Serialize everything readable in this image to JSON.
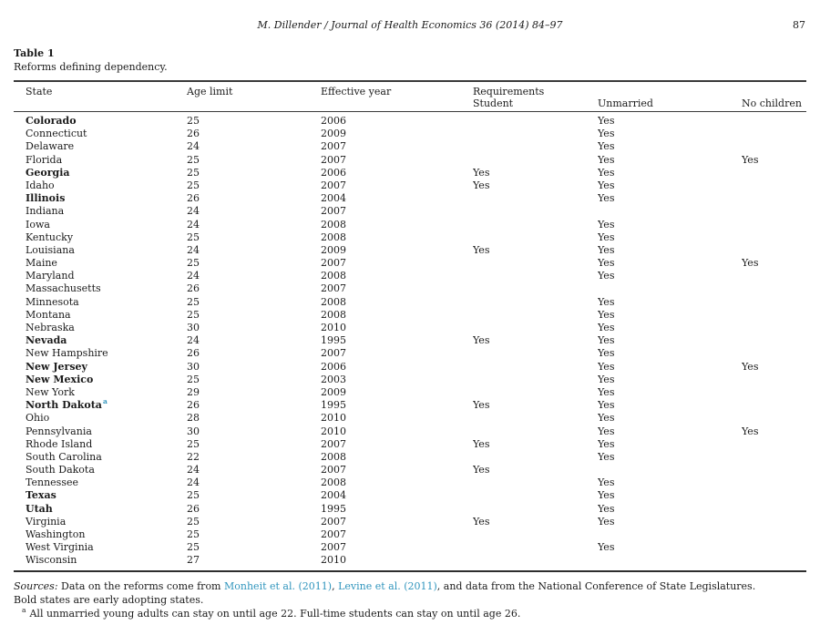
{
  "page": {
    "running_head": "M. Dillender / Journal of Health Economics 36 (2014) 84–97",
    "page_number": "87"
  },
  "table": {
    "label": "Table 1",
    "caption": "Reforms defining dependency.",
    "columns": {
      "state": "State",
      "age_limit": "Age limit",
      "effective_year": "Effective year",
      "requirements": "Requirements",
      "student": "Student",
      "unmarried": "Unmarried",
      "no_children": "No children"
    },
    "rows": [
      {
        "state": "Colorado",
        "bold": true,
        "age_limit": "25",
        "effective_year": "2006",
        "student": "",
        "unmarried": "Yes",
        "no_children": ""
      },
      {
        "state": "Connecticut",
        "bold": false,
        "age_limit": "26",
        "effective_year": "2009",
        "student": "",
        "unmarried": "Yes",
        "no_children": ""
      },
      {
        "state": "Delaware",
        "bold": false,
        "age_limit": "24",
        "effective_year": "2007",
        "student": "",
        "unmarried": "Yes",
        "no_children": ""
      },
      {
        "state": "Florida",
        "bold": false,
        "age_limit": "25",
        "effective_year": "2007",
        "student": "",
        "unmarried": "Yes",
        "no_children": "Yes"
      },
      {
        "state": "Georgia",
        "bold": true,
        "age_limit": "25",
        "effective_year": "2006",
        "student": "Yes",
        "unmarried": "Yes",
        "no_children": ""
      },
      {
        "state": "Idaho",
        "bold": false,
        "age_limit": "25",
        "effective_year": "2007",
        "student": "Yes",
        "unmarried": "Yes",
        "no_children": ""
      },
      {
        "state": "Illinois",
        "bold": true,
        "age_limit": "26",
        "effective_year": "2004",
        "student": "",
        "unmarried": "Yes",
        "no_children": ""
      },
      {
        "state": "Indiana",
        "bold": false,
        "age_limit": "24",
        "effective_year": "2007",
        "student": "",
        "unmarried": "",
        "no_children": ""
      },
      {
        "state": "Iowa",
        "bold": false,
        "age_limit": "24",
        "effective_year": "2008",
        "student": "",
        "unmarried": "Yes",
        "no_children": ""
      },
      {
        "state": "Kentucky",
        "bold": false,
        "age_limit": "25",
        "effective_year": "2008",
        "student": "",
        "unmarried": "Yes",
        "no_children": ""
      },
      {
        "state": "Louisiana",
        "bold": false,
        "age_limit": "24",
        "effective_year": "2009",
        "student": "Yes",
        "unmarried": "Yes",
        "no_children": ""
      },
      {
        "state": "Maine",
        "bold": false,
        "age_limit": "25",
        "effective_year": "2007",
        "student": "",
        "unmarried": "Yes",
        "no_children": "Yes"
      },
      {
        "state": "Maryland",
        "bold": false,
        "age_limit": "24",
        "effective_year": "2008",
        "student": "",
        "unmarried": "Yes",
        "no_children": ""
      },
      {
        "state": "Massachusetts",
        "bold": false,
        "age_limit": "26",
        "effective_year": "2007",
        "student": "",
        "unmarried": "",
        "no_children": ""
      },
      {
        "state": "Minnesota",
        "bold": false,
        "age_limit": "25",
        "effective_year": "2008",
        "student": "",
        "unmarried": "Yes",
        "no_children": ""
      },
      {
        "state": "Montana",
        "bold": false,
        "age_limit": "25",
        "effective_year": "2008",
        "student": "",
        "unmarried": "Yes",
        "no_children": ""
      },
      {
        "state": "Nebraska",
        "bold": false,
        "age_limit": "30",
        "effective_year": "2010",
        "student": "",
        "unmarried": "Yes",
        "no_children": ""
      },
      {
        "state": "Nevada",
        "bold": true,
        "age_limit": "24",
        "effective_year": "1995",
        "student": "Yes",
        "unmarried": "Yes",
        "no_children": ""
      },
      {
        "state": "New Hampshire",
        "bold": false,
        "age_limit": "26",
        "effective_year": "2007",
        "student": "",
        "unmarried": "Yes",
        "no_children": ""
      },
      {
        "state": "New Jersey",
        "bold": true,
        "age_limit": "30",
        "effective_year": "2006",
        "student": "",
        "unmarried": "Yes",
        "no_children": "Yes"
      },
      {
        "state": "New Mexico",
        "bold": true,
        "age_limit": "25",
        "effective_year": "2003",
        "student": "",
        "unmarried": "Yes",
        "no_children": ""
      },
      {
        "state": "New York",
        "bold": false,
        "age_limit": "29",
        "effective_year": "2009",
        "student": "",
        "unmarried": "Yes",
        "no_children": ""
      },
      {
        "state": "North Dakota",
        "bold": true,
        "marker": "a",
        "age_limit": "26",
        "effective_year": "1995",
        "student": "Yes",
        "unmarried": "Yes",
        "no_children": ""
      },
      {
        "state": "Ohio",
        "bold": false,
        "age_limit": "28",
        "effective_year": "2010",
        "student": "",
        "unmarried": "Yes",
        "no_children": ""
      },
      {
        "state": "Pennsylvania",
        "bold": false,
        "age_limit": "30",
        "effective_year": "2010",
        "student": "",
        "unmarried": "Yes",
        "no_children": "Yes"
      },
      {
        "state": "Rhode Island",
        "bold": false,
        "age_limit": "25",
        "effective_year": "2007",
        "student": "Yes",
        "unmarried": "Yes",
        "no_children": ""
      },
      {
        "state": "South Carolina",
        "bold": false,
        "age_limit": "22",
        "effective_year": "2008",
        "student": "",
        "unmarried": "Yes",
        "no_children": ""
      },
      {
        "state": "South Dakota",
        "bold": false,
        "age_limit": "24",
        "effective_year": "2007",
        "student": "Yes",
        "unmarried": "",
        "no_children": ""
      },
      {
        "state": "Tennessee",
        "bold": false,
        "age_limit": "24",
        "effective_year": "2008",
        "student": "",
        "unmarried": "Yes",
        "no_children": ""
      },
      {
        "state": "Texas",
        "bold": true,
        "age_limit": "25",
        "effective_year": "2004",
        "student": "",
        "unmarried": "Yes",
        "no_children": ""
      },
      {
        "state": "Utah",
        "bold": true,
        "age_limit": "26",
        "effective_year": "1995",
        "student": "",
        "unmarried": "Yes",
        "no_children": ""
      },
      {
        "state": "Virginia",
        "bold": false,
        "age_limit": "25",
        "effective_year": "2007",
        "student": "Yes",
        "unmarried": "Yes",
        "no_children": ""
      },
      {
        "state": "Washington",
        "bold": false,
        "age_limit": "25",
        "effective_year": "2007",
        "student": "",
        "unmarried": "",
        "no_children": ""
      },
      {
        "state": "West Virginia",
        "bold": false,
        "age_limit": "25",
        "effective_year": "2007",
        "student": "",
        "unmarried": "Yes",
        "no_children": ""
      },
      {
        "state": "Wisconsin",
        "bold": false,
        "age_limit": "27",
        "effective_year": "2010",
        "student": "",
        "unmarried": "",
        "no_children": ""
      }
    ]
  },
  "footer": {
    "sources_label": "Sources:",
    "sources_pre": " Data on the reforms come from ",
    "citation_1": "Monheit et al. (2011)",
    "separator": ", ",
    "citation_2": "Levine et al. (2011)",
    "sources_post": ", and data from the National Conference of State Legislatures.",
    "bold_note": "Bold states are early adopting states.",
    "footnote_marker": "a",
    "footnote_text": "All unmarried young adults can stay on until age 22. Full-time students can stay on until age 26."
  },
  "colors": {
    "link": "#3095bd",
    "text": "#1b1b1b"
  }
}
